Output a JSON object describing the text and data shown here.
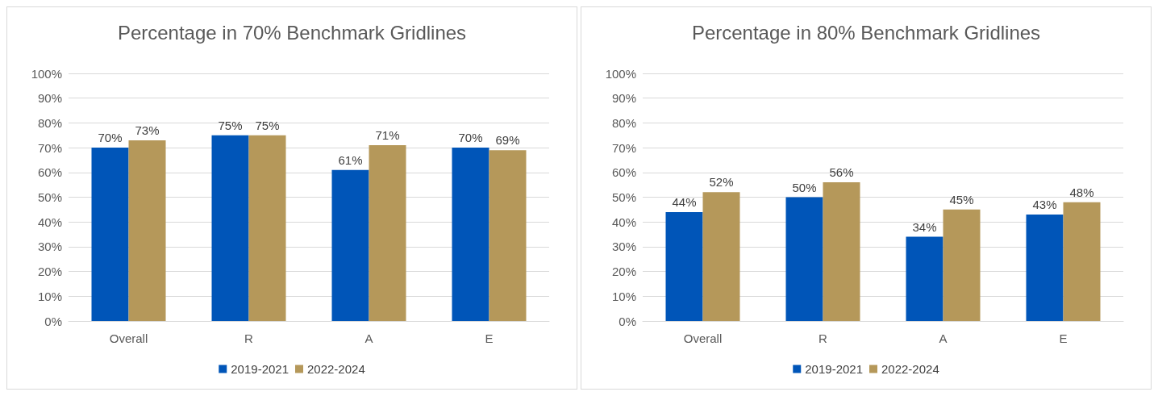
{
  "chart_data": [
    {
      "type": "bar",
      "title": "Percentage in 70% Benchmark Gridlines",
      "categories": [
        "Overall",
        "R",
        "A",
        "E"
      ],
      "series": [
        {
          "name": "2019-2021",
          "color": "#0055b8",
          "values": [
            70,
            75,
            61,
            70
          ],
          "value_labels": [
            "70%",
            "75%",
            "61%",
            "70%"
          ]
        },
        {
          "name": "2022-2024",
          "color": "#b5985a",
          "values": [
            73,
            75,
            71,
            69
          ],
          "value_labels": [
            "73%",
            "75%",
            "71%",
            "69%"
          ]
        }
      ],
      "ylim": [
        0,
        100
      ],
      "yticks": [
        {
          "value": 0,
          "label": "0%"
        },
        {
          "value": 10,
          "label": "10%"
        },
        {
          "value": 20,
          "label": "20%"
        },
        {
          "value": 30,
          "label": "30%"
        },
        {
          "value": 40,
          "label": "40%"
        },
        {
          "value": 50,
          "label": "50%"
        },
        {
          "value": 60,
          "label": "60%"
        },
        {
          "value": 70,
          "label": "70%"
        },
        {
          "value": 80,
          "label": "80%"
        },
        {
          "value": 90,
          "label": "90%"
        },
        {
          "value": 100,
          "label": "100%"
        }
      ],
      "grid": "y",
      "legend": "bottom"
    },
    {
      "type": "bar",
      "title": "Percentage in 80% Benchmark Gridlines",
      "categories": [
        "Overall",
        "R",
        "A",
        "E"
      ],
      "series": [
        {
          "name": "2019-2021",
          "color": "#0055b8",
          "values": [
            44,
            50,
            34,
            43
          ],
          "value_labels": [
            "44%",
            "50%",
            "34%",
            "43%"
          ]
        },
        {
          "name": "2022-2024",
          "color": "#b5985a",
          "values": [
            52,
            56,
            45,
            48
          ],
          "value_labels": [
            "52%",
            "56%",
            "45%",
            "48%"
          ]
        }
      ],
      "ylim": [
        0,
        100
      ],
      "yticks": [
        {
          "value": 0,
          "label": "0%"
        },
        {
          "value": 10,
          "label": "10%"
        },
        {
          "value": 20,
          "label": "20%"
        },
        {
          "value": 30,
          "label": "30%"
        },
        {
          "value": 40,
          "label": "40%"
        },
        {
          "value": 50,
          "label": "50%"
        },
        {
          "value": 60,
          "label": "60%"
        },
        {
          "value": 70,
          "label": "70%"
        },
        {
          "value": 80,
          "label": "80%"
        },
        {
          "value": 90,
          "label": "90%"
        },
        {
          "value": 100,
          "label": "100%"
        }
      ],
      "grid": "y",
      "legend": "bottom"
    }
  ]
}
